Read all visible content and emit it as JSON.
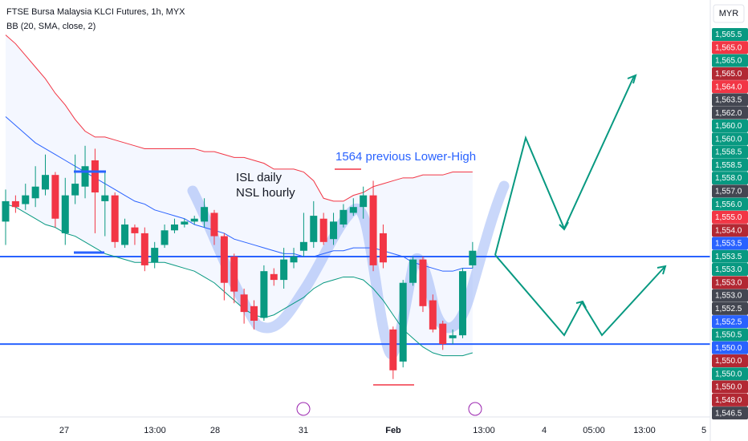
{
  "chart_data": {
    "type": "candlestick",
    "title": "FTSE Bursa Malaysia KLCI Futures, 1h, MYX",
    "subtitle": "BB (20, SMA, close, 2)",
    "currency": "MYR",
    "ylim": [
      1548,
      1562.3
    ],
    "up_color": "#089981",
    "down_color": "#f23645",
    "open": [
      1554.7,
      1555.4,
      1555.3,
      1555.5,
      1555.8,
      1556.3,
      1554.3,
      1555.6,
      1555.9,
      1556.8,
      1555.4,
      1555.6,
      1553.9,
      1554.5,
      1554.3,
      1553.3,
      1553.9,
      1554.4,
      1554.6,
      1554.7,
      1554.7,
      1555.0,
      1554.2,
      1553.5,
      1552.2,
      1551.8,
      1551.4,
      1552.9,
      1552.7,
      1553.3,
      1553.7,
      1554.0,
      1554.8,
      1554.1,
      1554.6,
      1555.0,
      1555.2,
      1555.6,
      1554.3,
      1551.0,
      1549.9,
      1552.6,
      1553.4,
      1552.0,
      1551.2,
      1550.7,
      1550.8,
      1553.2
    ],
    "high": [
      1555.8,
      1555.6,
      1556.0,
      1556.6,
      1557.0,
      1556.4,
      1556.2,
      1557.0,
      1557.3,
      1557.2,
      1556.4,
      1555.7,
      1554.8,
      1554.6,
      1554.5,
      1554.0,
      1554.6,
      1554.8,
      1554.8,
      1554.9,
      1555.5,
      1555.1,
      1554.3,
      1553.6,
      1552.4,
      1552.0,
      1553.2,
      1553.1,
      1553.8,
      1553.8,
      1555.0,
      1555.4,
      1555.0,
      1555.0,
      1555.3,
      1555.5,
      1555.9,
      1556.1,
      1554.6,
      1551.1,
      1552.7,
      1553.5,
      1553.5,
      1552.2,
      1551.3,
      1551.0,
      1553.1,
      1554.0
    ],
    "low": [
      1553.9,
      1555.0,
      1555.1,
      1555.2,
      1555.6,
      1554.5,
      1553.9,
      1555.3,
      1555.5,
      1554.3,
      1554.2,
      1553.8,
      1553.8,
      1553.9,
      1553.0,
      1553.1,
      1553.8,
      1554.3,
      1554.5,
      1554.6,
      1554.5,
      1553.9,
      1552.0,
      1551.9,
      1551.2,
      1551.0,
      1551.3,
      1552.5,
      1552.4,
      1553.1,
      1553.5,
      1553.8,
      1553.9,
      1553.9,
      1554.5,
      1554.9,
      1554.8,
      1553.0,
      1553.1,
      1549.3,
      1549.7,
      1552.5,
      1551.6,
      1550.9,
      1550.3,
      1550.5,
      1550.7,
      1553.1
    ],
    "close": [
      1555.4,
      1555.2,
      1555.6,
      1555.9,
      1556.3,
      1554.8,
      1555.6,
      1556.0,
      1556.6,
      1555.7,
      1555.6,
      1554.0,
      1554.6,
      1554.3,
      1553.2,
      1553.8,
      1554.4,
      1554.6,
      1554.7,
      1554.8,
      1555.2,
      1554.2,
      1552.6,
      1552.3,
      1551.6,
      1551.3,
      1553.0,
      1552.7,
      1553.4,
      1553.5,
      1554.0,
      1554.9,
      1554.0,
      1554.7,
      1555.1,
      1555.2,
      1555.6,
      1553.2,
      1553.3,
      1549.6,
      1552.6,
      1553.4,
      1551.8,
      1551.0,
      1550.5,
      1550.8,
      1553.0,
      1553.7
    ],
    "series": [
      {
        "color": "#f23645",
        "values": [
          1561.1,
          1560.8,
          1560.4,
          1560.0,
          1559.6,
          1559.1,
          1558.7,
          1558.2,
          1557.8,
          1557.6,
          1557.6,
          1557.5,
          1557.4,
          1557.3,
          1557.2,
          1557.2,
          1557.2,
          1557.2,
          1557.2,
          1557.2,
          1557.1,
          1557.1,
          1557.0,
          1556.9,
          1556.9,
          1556.8,
          1556.7,
          1556.5,
          1556.5,
          1556.5,
          1556.4,
          1556.1,
          1555.5,
          1555.4,
          1555.4,
          1555.6,
          1555.7,
          1555.9,
          1556.0,
          1556.1,
          1556.2,
          1556.2,
          1556.3,
          1556.3,
          1556.3,
          1556.4,
          1556.4,
          1556.4
        ]
      },
      {
        "color": "#2962ff",
        "values": [
          1558.3,
          1558.0,
          1557.7,
          1557.4,
          1557.2,
          1557.0,
          1556.8,
          1556.6,
          1556.4,
          1556.2,
          1556.0,
          1555.8,
          1555.6,
          1555.4,
          1555.3,
          1555.1,
          1555.0,
          1554.9,
          1554.8,
          1554.6,
          1554.5,
          1554.4,
          1554.3,
          1554.1,
          1554.0,
          1553.9,
          1553.8,
          1553.7,
          1553.6,
          1553.6,
          1553.5,
          1553.5,
          1553.6,
          1553.7,
          1553.7,
          1553.8,
          1553.8,
          1553.8,
          1553.7,
          1553.6,
          1553.5,
          1553.3,
          1553.2,
          1553.1,
          1553.0,
          1553.0,
          1553.1,
          1553.1
        ]
      },
      {
        "color": "#089981",
        "values": [
          1555.3,
          1555.2,
          1555.0,
          1554.8,
          1554.6,
          1554.5,
          1554.3,
          1554.2,
          1554.0,
          1553.8,
          1553.6,
          1553.5,
          1553.4,
          1553.3,
          1553.3,
          1553.3,
          1553.3,
          1553.2,
          1553.1,
          1553.0,
          1552.8,
          1552.6,
          1552.3,
          1552.0,
          1551.7,
          1551.5,
          1551.4,
          1551.5,
          1551.7,
          1551.9,
          1552.1,
          1552.4,
          1552.6,
          1552.7,
          1552.8,
          1552.8,
          1552.7,
          1552.4,
          1552.0,
          1551.5,
          1551.0,
          1550.7,
          1550.4,
          1550.2,
          1550.1,
          1550.1,
          1550.1,
          1550.2
        ]
      }
    ],
    "levels": [
      {
        "value": 1553.5,
        "color": "#2962ff"
      },
      {
        "value": 1550.5,
        "color": "#2962ff"
      }
    ],
    "annotations": [
      "ISL daily",
      "NSL hourly",
      "1564 previous Lower-High"
    ],
    "x_labels": [
      "27",
      "13:00",
      "28",
      "31",
      "Feb",
      "13:00",
      "4",
      "05:00",
      "13:00",
      "5"
    ],
    "axis_tags": [
      {
        "label": "1,565.5",
        "color": "#089981"
      },
      {
        "label": "1,565.0",
        "color": "#f23645"
      },
      {
        "label": "1,565.0",
        "color": "#089981"
      },
      {
        "label": "1,565.0",
        "color": "#b22833"
      },
      {
        "label": "1,564.0",
        "color": "#f23645"
      },
      {
        "label": "1,563.5",
        "color": "#434651"
      },
      {
        "label": "1,562.0",
        "color": "#434651"
      },
      {
        "label": "1,560.0",
        "color": "#089981"
      },
      {
        "label": "1,560.0",
        "color": "#089981"
      },
      {
        "label": "1,558.5",
        "color": "#089981"
      },
      {
        "label": "1,558.5",
        "color": "#089981"
      },
      {
        "label": "1,558.0",
        "color": "#089981"
      },
      {
        "label": "1,557.0",
        "color": "#434651"
      },
      {
        "label": "1,556.0",
        "color": "#089981"
      },
      {
        "label": "1,555.0",
        "color": "#f23645"
      },
      {
        "label": "1,554.0",
        "color": "#b22833"
      },
      {
        "label": "1,553.5",
        "color": "#2962ff"
      },
      {
        "label": "1,553.5",
        "color": "#089981"
      },
      {
        "label": "1,553.0",
        "color": "#089981"
      },
      {
        "label": "1,553.0",
        "color": "#b22833"
      },
      {
        "label": "1,553.0",
        "color": "#434651"
      },
      {
        "label": "1,552.5",
        "color": "#434651"
      },
      {
        "label": "1,552.5",
        "color": "#2962ff"
      },
      {
        "label": "1,550.5",
        "color": "#089981"
      },
      {
        "label": "1,550.0",
        "color": "#2962ff"
      },
      {
        "label": "1,550.0",
        "color": "#b22833"
      },
      {
        "label": "1,550.0",
        "color": "#089981"
      },
      {
        "label": "1,550.0",
        "color": "#b22833"
      },
      {
        "label": "1,548.0",
        "color": "#b22833"
      },
      {
        "label": "1,546.5",
        "color": "#434651"
      }
    ]
  }
}
